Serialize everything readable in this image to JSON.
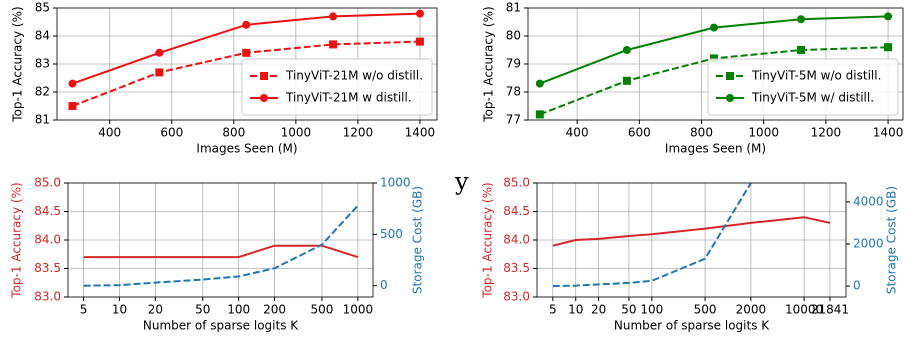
{
  "chart_data": [
    {
      "type": "line",
      "xlabel": "Images Seen (M)",
      "ylabel": "Top-1 Accuracy (%)",
      "x": [
        280,
        560,
        840,
        1120,
        1400
      ],
      "series": [
        {
          "name": "TinyViT-21M w/o distill.",
          "color": "#ee1111",
          "linestyle": "dashed",
          "marker": "square",
          "values": [
            81.5,
            82.7,
            83.4,
            83.7,
            83.8
          ]
        },
        {
          "name": "TinyViT-21M w distill.",
          "color": "#ee1111",
          "linestyle": "solid",
          "marker": "circle",
          "values": [
            82.3,
            83.4,
            84.4,
            84.7,
            84.8
          ]
        }
      ],
      "xlim": [
        230,
        1455
      ],
      "xticks": [
        400,
        600,
        800,
        1000,
        1200,
        1400
      ],
      "ylim": [
        81,
        85
      ],
      "yticks": [
        81,
        82,
        83,
        84,
        85
      ],
      "grid": true,
      "legend": "lower right"
    },
    {
      "type": "line",
      "xlabel": "Images Seen (M)",
      "ylabel": "Top-1 Accuracy (%)",
      "x": [
        280,
        560,
        840,
        1120,
        1400
      ],
      "series": [
        {
          "name": "TinyViT-5M w/o distill.",
          "color": "#008000",
          "linestyle": "dashed",
          "marker": "square",
          "values": [
            77.2,
            78.4,
            79.2,
            79.5,
            79.6
          ]
        },
        {
          "name": "TinyViT-5M w/ distill.",
          "color": "#008000",
          "linestyle": "solid",
          "marker": "circle",
          "values": [
            78.3,
            79.5,
            80.3,
            80.6,
            80.7
          ]
        }
      ],
      "xlim": [
        242,
        1448
      ],
      "xticks": [
        400,
        600,
        800,
        1000,
        1200,
        1400
      ],
      "ylim": [
        77,
        81
      ],
      "yticks": [
        77,
        78,
        79,
        80,
        81
      ],
      "grid": true,
      "legend": "lower right"
    },
    {
      "type": "line",
      "xlabel": "Number of sparse logits K",
      "ylabel": "Top-1 Accuracy (%)",
      "y2label": "Storage Cost (GB)",
      "x": [
        5,
        10,
        20,
        50,
        100,
        200,
        500,
        1000
      ],
      "xscale": "log",
      "series": [
        {
          "color": "#d62728",
          "linestyle": "solid",
          "values": [
            83.7,
            83.7,
            83.7,
            83.7,
            83.7,
            83.9,
            83.9,
            83.7
          ]
        },
        {
          "color": "#1f77b4",
          "linestyle": "dashed",
          "axis": "y2",
          "values": [
            0,
            5,
            30,
            60,
            90,
            170,
            400,
            780
          ]
        }
      ],
      "xlim": [
        3.7,
        1340
      ],
      "xticks": [
        5,
        10,
        20,
        50,
        100,
        200,
        500,
        1000
      ],
      "ylim": [
        83,
        85
      ],
      "yticks": [
        {
          "value": 83,
          "label": "83.0"
        },
        83.5,
        {
          "value": 84,
          "label": "84.0"
        },
        84.5,
        {
          "value": 85,
          "label": "85.0"
        }
      ],
      "y2lim": [
        -110,
        1000
      ],
      "y2ticks": [
        0,
        500,
        1000
      ],
      "grid": true
    },
    {
      "type": "line",
      "xlabel": "Number of sparse logits K",
      "ylabel": "Top-1 Accuracy (%)",
      "y2label": "Storage Cost (GB)",
      "x": [
        5,
        10,
        20,
        50,
        100,
        500,
        2000,
        10000,
        21841
      ],
      "xscale": "log",
      "series": [
        {
          "color": "#d62728",
          "linestyle": "solid",
          "values": [
            83.9,
            84.0,
            84.02,
            84.07,
            84.1,
            84.2,
            84.3,
            84.4,
            84.3
          ]
        },
        {
          "color": "#1f77b4",
          "linestyle": "dashed",
          "axis": "y2",
          "values": [
            0,
            20,
            80,
            150,
            250,
            1300,
            4900,
            null,
            null
          ]
        }
      ],
      "xlim": [
        3.1,
        35500
      ],
      "xticks": [
        5,
        10,
        20,
        50,
        100,
        500,
        2000,
        10000,
        21841
      ],
      "ylim": [
        83,
        85
      ],
      "yticks": [
        {
          "value": 83,
          "label": "83.0"
        },
        83.5,
        {
          "value": 84,
          "label": "84.0"
        },
        84.5,
        {
          "value": 85,
          "label": "85.0"
        }
      ],
      "y2lim": [
        -520,
        4900
      ],
      "y2ticks": [
        0,
        2000,
        4000
      ],
      "grid": true
    }
  ],
  "stray_text": "y"
}
